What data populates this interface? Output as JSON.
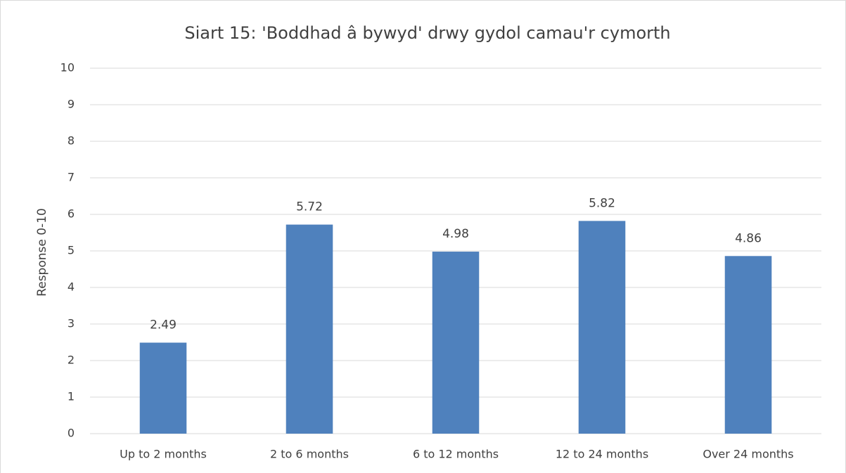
{
  "chart_data": {
    "type": "bar",
    "title": "Siart 15: 'Boddhad â bywyd' drwy gydol camau'r cymorth",
    "y_label": "Response 0-10",
    "categories": [
      "Up to 2 months",
      "2 to 6 months",
      "6 to 12 months",
      "12 to 24 months",
      "Over 24 months"
    ],
    "values": [
      2.49,
      5.72,
      4.98,
      5.82,
      4.86
    ],
    "color": "#4f81bd",
    "ylim": [
      0,
      10
    ],
    "yticks": [
      0,
      1,
      2,
      3,
      4,
      5,
      6,
      7,
      8,
      9,
      10
    ],
    "grid": true
  }
}
